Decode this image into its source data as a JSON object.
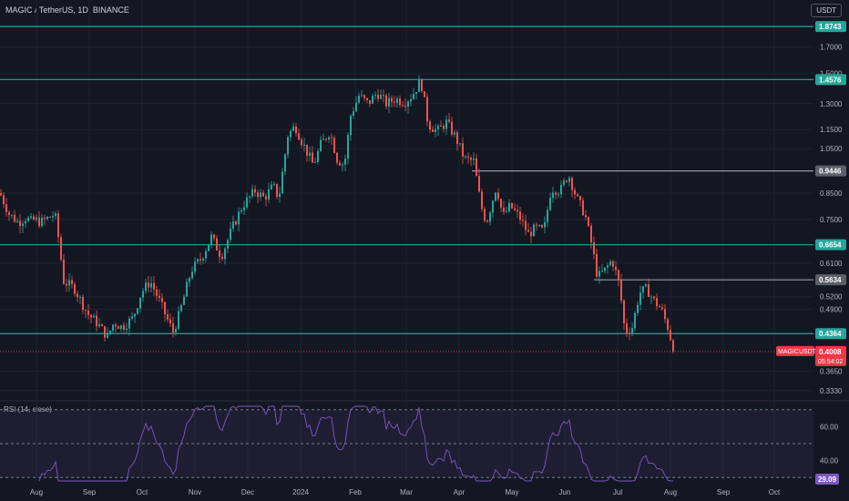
{
  "header": {
    "title": "MAGIC / TetherUS, 1D, BINANCE",
    "currency": "USDT"
  },
  "rsi": {
    "label": "RSI (14, close)",
    "current": "29.09",
    "levels": [
      70,
      50,
      30
    ]
  },
  "colors": {
    "up": "#26a69a",
    "down": "#ef5350",
    "hline": "#26a69a",
    "rsi_line": "#7e57c2",
    "rsi_badge": "#7e57c2",
    "gray_line": "#9598a1",
    "price_badge": "#f23645"
  },
  "chart_data": {
    "type": "candlestick",
    "symbol": "MAGICUSDT",
    "y_scale": "log",
    "ylim": [
      0.32,
      1.95
    ],
    "y_tick_labels": [
      "1.7000",
      "1.5000",
      "1.3000",
      "1.1500",
      "1.0500",
      "0.8500",
      "0.7500",
      "0.6100",
      "0.5200",
      "0.4900",
      "0.3650",
      "0.3330"
    ],
    "y_ticks": [
      1.7,
      1.5,
      1.3,
      1.15,
      1.05,
      0.85,
      0.75,
      0.61,
      0.52,
      0.49,
      0.365,
      0.333
    ],
    "x_labels": [
      "Aug",
      "Sep",
      "Oct",
      "Nov",
      "Dec",
      "2024",
      "Feb",
      "Mar",
      "Apr",
      "May",
      "Jun",
      "Jul",
      "Aug",
      "Sep",
      "Oct"
    ],
    "horizontal_levels": [
      {
        "label": "1.8743",
        "value": 1.8743,
        "style": "teal"
      },
      {
        "label": "1.4576",
        "value": 1.4576,
        "style": "teal"
      },
      {
        "label": "0.9446",
        "value": 0.9446,
        "style": "gray"
      },
      {
        "label": "0.6654",
        "value": 0.6654,
        "style": "teal"
      },
      {
        "label": "0.5634",
        "value": 0.5634,
        "style": "gray"
      },
      {
        "label": "0.4364",
        "value": 0.4364,
        "style": "teal"
      }
    ],
    "current_price": {
      "label": "0.4008",
      "value": 0.4008,
      "countdown": "05:54:02",
      "symbol": "MAGICUSDT"
    },
    "anchors": [
      [
        0,
        0.85
      ],
      [
        10,
        0.77
      ],
      [
        20,
        0.74
      ],
      [
        30,
        0.76
      ],
      [
        32,
        0.74
      ],
      [
        38,
        0.75
      ],
      [
        45,
        0.74
      ],
      [
        60,
        0.77
      ],
      [
        62,
        0.74
      ],
      [
        70,
        0.56
      ],
      [
        82,
        0.54
      ],
      [
        96,
        0.48
      ],
      [
        106,
        0.46
      ],
      [
        118,
        0.43
      ],
      [
        125,
        0.46
      ],
      [
        134,
        0.45
      ],
      [
        146,
        0.47
      ],
      [
        155,
        0.53
      ],
      [
        165,
        0.56
      ],
      [
        175,
        0.51
      ],
      [
        183,
        0.47
      ],
      [
        190,
        0.44
      ],
      [
        197,
        0.48
      ],
      [
        210,
        0.59
      ],
      [
        220,
        0.62
      ],
      [
        232,
        0.69
      ],
      [
        243,
        0.63
      ],
      [
        255,
        0.72
      ],
      [
        266,
        0.8
      ],
      [
        280,
        0.86
      ],
      [
        290,
        0.83
      ],
      [
        300,
        0.88
      ],
      [
        306,
        0.83
      ],
      [
        316,
        1.12
      ],
      [
        324,
        1.17
      ],
      [
        332,
        1.08
      ],
      [
        344,
        0.97
      ],
      [
        352,
        1.07
      ],
      [
        362,
        1.14
      ],
      [
        370,
        1.0
      ],
      [
        378,
        0.97
      ],
      [
        385,
        1.23
      ],
      [
        394,
        1.35
      ],
      [
        404,
        1.3
      ],
      [
        414,
        1.37
      ],
      [
        424,
        1.3
      ],
      [
        434,
        1.33
      ],
      [
        444,
        1.31
      ],
      [
        452,
        1.35
      ],
      [
        462,
        1.45
      ],
      [
        470,
        1.18
      ],
      [
        480,
        1.14
      ],
      [
        490,
        1.19
      ],
      [
        500,
        1.11
      ],
      [
        510,
        1.0
      ],
      [
        520,
        0.99
      ],
      [
        528,
        0.8
      ],
      [
        534,
        0.74
      ],
      [
        545,
        0.88
      ],
      [
        552,
        0.76
      ],
      [
        560,
        0.8
      ],
      [
        570,
        0.76
      ],
      [
        580,
        0.7
      ],
      [
        588,
        0.72
      ],
      [
        597,
        0.71
      ],
      [
        605,
        0.87
      ],
      [
        615,
        0.86
      ],
      [
        624,
        0.93
      ],
      [
        633,
        0.83
      ],
      [
        642,
        0.77
      ],
      [
        650,
        0.66
      ],
      [
        656,
        0.57
      ],
      [
        664,
        0.59
      ],
      [
        672,
        0.62
      ],
      [
        680,
        0.55
      ],
      [
        686,
        0.44
      ],
      [
        694,
        0.45
      ],
      [
        702,
        0.53
      ],
      [
        710,
        0.54
      ],
      [
        718,
        0.51
      ],
      [
        726,
        0.49
      ],
      [
        733,
        0.45
      ],
      [
        740,
        0.4008
      ]
    ]
  }
}
